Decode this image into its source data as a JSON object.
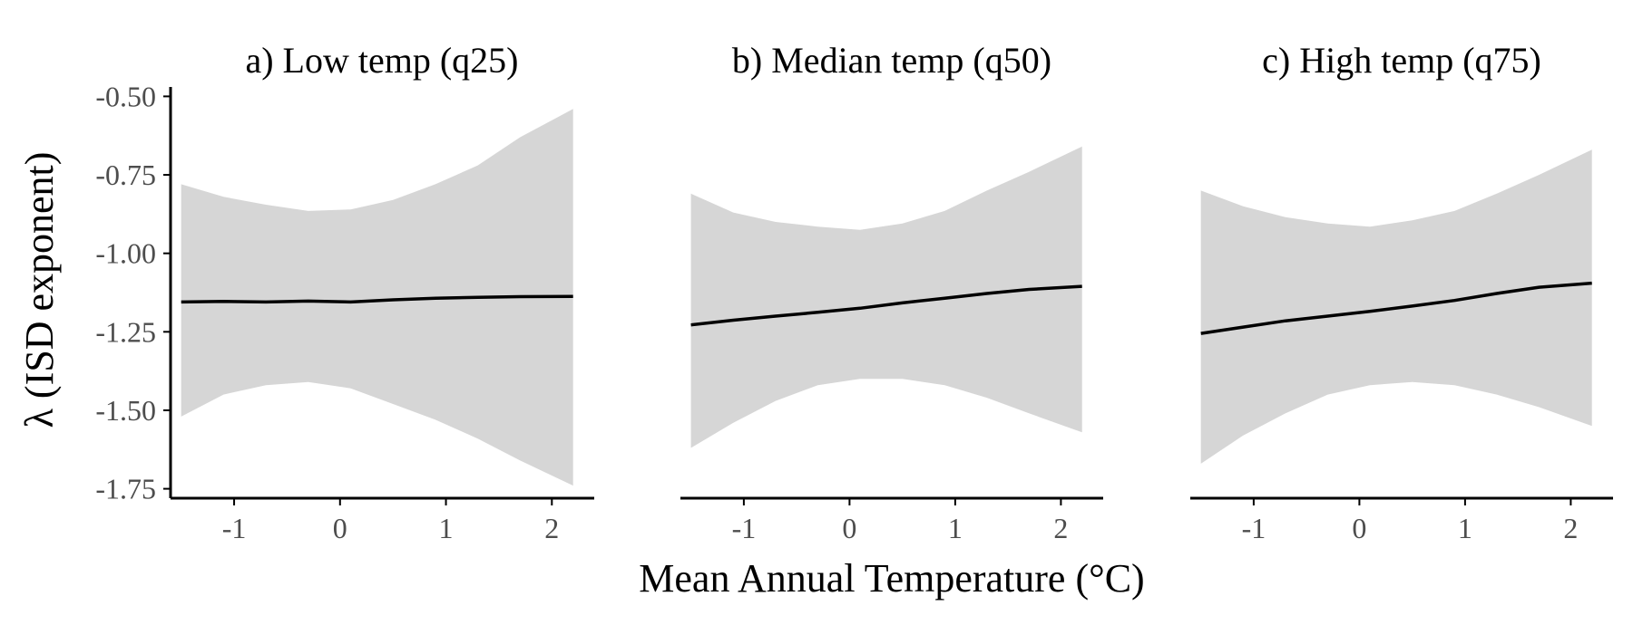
{
  "chart_data": [
    {
      "type": "line",
      "title": "a) Low temp (q25)",
      "x": [
        -1.5,
        -1.1,
        -0.7,
        -0.3,
        0.1,
        0.5,
        0.9,
        1.3,
        1.7,
        2.2
      ],
      "series": [
        {
          "y": [
            -1.155,
            -1.153,
            -1.155,
            -1.152,
            -1.155,
            -1.148,
            -1.143,
            -1.14,
            -1.138,
            -1.137
          ],
          "lower": [
            -1.52,
            -1.45,
            -1.42,
            -1.41,
            -1.43,
            -1.48,
            -1.53,
            -1.59,
            -1.66,
            -1.74
          ],
          "upper": [
            -0.78,
            -0.82,
            -0.845,
            -0.865,
            -0.86,
            -0.83,
            -0.78,
            -0.72,
            -0.63,
            -0.54
          ]
        }
      ],
      "xlim": [
        -1.6,
        2.4
      ],
      "ylim": [
        -1.78,
        -0.47
      ],
      "xticks": [
        -1,
        0,
        1,
        2
      ],
      "yticks": [
        -0.5,
        -0.75,
        -1.0,
        -1.25,
        -1.5,
        -1.75
      ]
    },
    {
      "type": "line",
      "title": "b) Median temp (q50)",
      "x": [
        -1.5,
        -1.1,
        -0.7,
        -0.3,
        0.1,
        0.5,
        0.9,
        1.3,
        1.7,
        2.2
      ],
      "series": [
        {
          "y": [
            -1.228,
            -1.213,
            -1.2,
            -1.188,
            -1.175,
            -1.158,
            -1.143,
            -1.128,
            -1.115,
            -1.105
          ],
          "lower": [
            -1.62,
            -1.54,
            -1.47,
            -1.42,
            -1.4,
            -1.4,
            -1.42,
            -1.46,
            -1.51,
            -1.57
          ],
          "upper": [
            -0.81,
            -0.87,
            -0.9,
            -0.915,
            -0.925,
            -0.905,
            -0.865,
            -0.8,
            -0.74,
            -0.66
          ]
        }
      ],
      "xlim": [
        -1.6,
        2.4
      ],
      "ylim": [
        -1.78,
        -0.47
      ],
      "xticks": [
        -1,
        0,
        1,
        2
      ],
      "yticks": [
        -0.5,
        -0.75,
        -1.0,
        -1.25,
        -1.5,
        -1.75
      ]
    },
    {
      "type": "line",
      "title": "c) High temp (q75)",
      "x": [
        -1.5,
        -1.1,
        -0.7,
        -0.3,
        0.1,
        0.5,
        0.9,
        1.3,
        1.7,
        2.2
      ],
      "series": [
        {
          "y": [
            -1.255,
            -1.235,
            -1.215,
            -1.2,
            -1.185,
            -1.168,
            -1.15,
            -1.128,
            -1.108,
            -1.095
          ],
          "lower": [
            -1.67,
            -1.58,
            -1.51,
            -1.45,
            -1.42,
            -1.41,
            -1.42,
            -1.45,
            -1.49,
            -1.55
          ],
          "upper": [
            -0.8,
            -0.85,
            -0.885,
            -0.905,
            -0.915,
            -0.895,
            -0.865,
            -0.81,
            -0.75,
            -0.67
          ]
        }
      ],
      "xlim": [
        -1.6,
        2.4
      ],
      "ylim": [
        -1.78,
        -0.47
      ],
      "xticks": [
        -1,
        0,
        1,
        2
      ],
      "yticks": [
        -0.5,
        -0.75,
        -1.0,
        -1.25,
        -1.5,
        -1.75
      ]
    }
  ],
  "axes": {
    "xlabel": "Mean Annual Temperature (°C)",
    "ylabel": "λ (ISD exponent)",
    "ytick_labels": [
      "-0.50",
      "-0.75",
      "-1.00",
      "-1.25",
      "-1.50",
      "-1.75"
    ]
  },
  "colors": {
    "band": "#d6d6d6",
    "line": "#000000",
    "tick_label": "#4d4d4d"
  }
}
